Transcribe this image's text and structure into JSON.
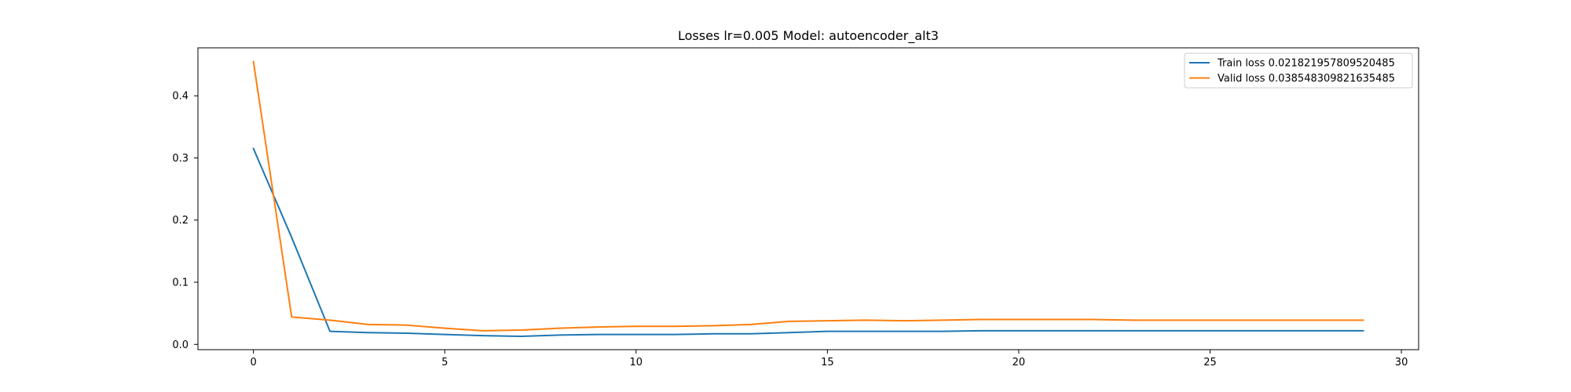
{
  "chart_data": {
    "type": "line",
    "title": "Losses lr=0.005 Model: autoencoder_alt3",
    "xlabel": "",
    "ylabel": "",
    "xlim": [
      -1.45,
      30.45
    ],
    "ylim": [
      -0.0085,
      0.4772
    ],
    "xticks": [
      0,
      5,
      10,
      15,
      20,
      25,
      30
    ],
    "yticks": [
      0.0,
      0.1,
      0.2,
      0.3,
      0.4
    ],
    "xtick_labels": [
      "0",
      "5",
      "10",
      "15",
      "20",
      "25",
      "30"
    ],
    "ytick_labels": [
      "0.0",
      "0.1",
      "0.2",
      "0.3",
      "0.4"
    ],
    "grid": false,
    "legend_position": "top-right",
    "x": [
      0,
      1,
      2,
      3,
      4,
      5,
      6,
      7,
      8,
      9,
      10,
      11,
      12,
      13,
      14,
      15,
      16,
      17,
      18,
      19,
      20,
      21,
      22,
      23,
      24,
      25,
      26,
      27,
      28,
      29
    ],
    "series": [
      {
        "name": "Train loss 0.021821957809520485",
        "color": "#1f77b4",
        "values": [
          0.315,
          0.172,
          0.021,
          0.019,
          0.018,
          0.016,
          0.014,
          0.013,
          0.015,
          0.016,
          0.016,
          0.016,
          0.017,
          0.017,
          0.019,
          0.021,
          0.021,
          0.021,
          0.021,
          0.022,
          0.022,
          0.022,
          0.022,
          0.022,
          0.022,
          0.022,
          0.022,
          0.022,
          0.022,
          0.022
        ]
      },
      {
        "name": "Valid loss 0.038548309821635485",
        "color": "#ff7f0e",
        "values": [
          0.455,
          0.044,
          0.039,
          0.032,
          0.031,
          0.026,
          0.022,
          0.023,
          0.026,
          0.028,
          0.029,
          0.029,
          0.03,
          0.032,
          0.037,
          0.038,
          0.039,
          0.038,
          0.039,
          0.04,
          0.04,
          0.04,
          0.04,
          0.039,
          0.039,
          0.039,
          0.039,
          0.039,
          0.039,
          0.039
        ]
      }
    ]
  }
}
